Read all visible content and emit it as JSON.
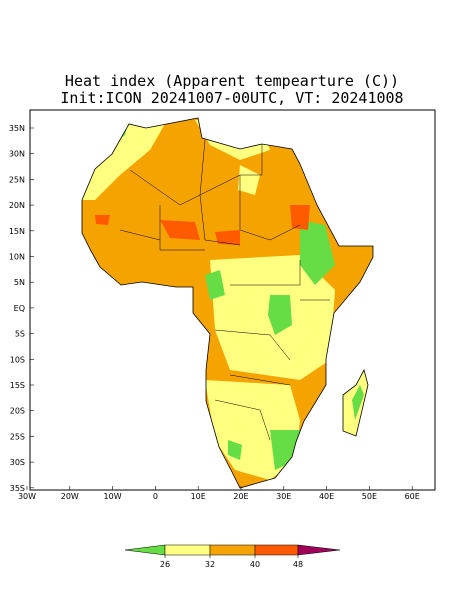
{
  "title": {
    "line1": "Heat index (Apparent tempearture (C))",
    "line2": "Init:ICON 20241007-00UTC, VT: 20241008"
  },
  "lat_labels": [
    "35N",
    "30N",
    "25N",
    "20N",
    "15N",
    "10N",
    "5N",
    "EQ",
    "5S",
    "10S",
    "15S",
    "20S",
    "25S",
    "30S",
    "35S"
  ],
  "lon_labels": [
    "30W",
    "20W",
    "10W",
    "0",
    "10E",
    "20E",
    "30E",
    "40E",
    "50E",
    "60E"
  ],
  "colorbar": {
    "ticks": [
      26,
      32,
      40,
      48
    ],
    "colors": [
      "#66dd44",
      "#ffff80",
      "#f5a300",
      "#ff5a00",
      "#a0005a"
    ]
  }
}
